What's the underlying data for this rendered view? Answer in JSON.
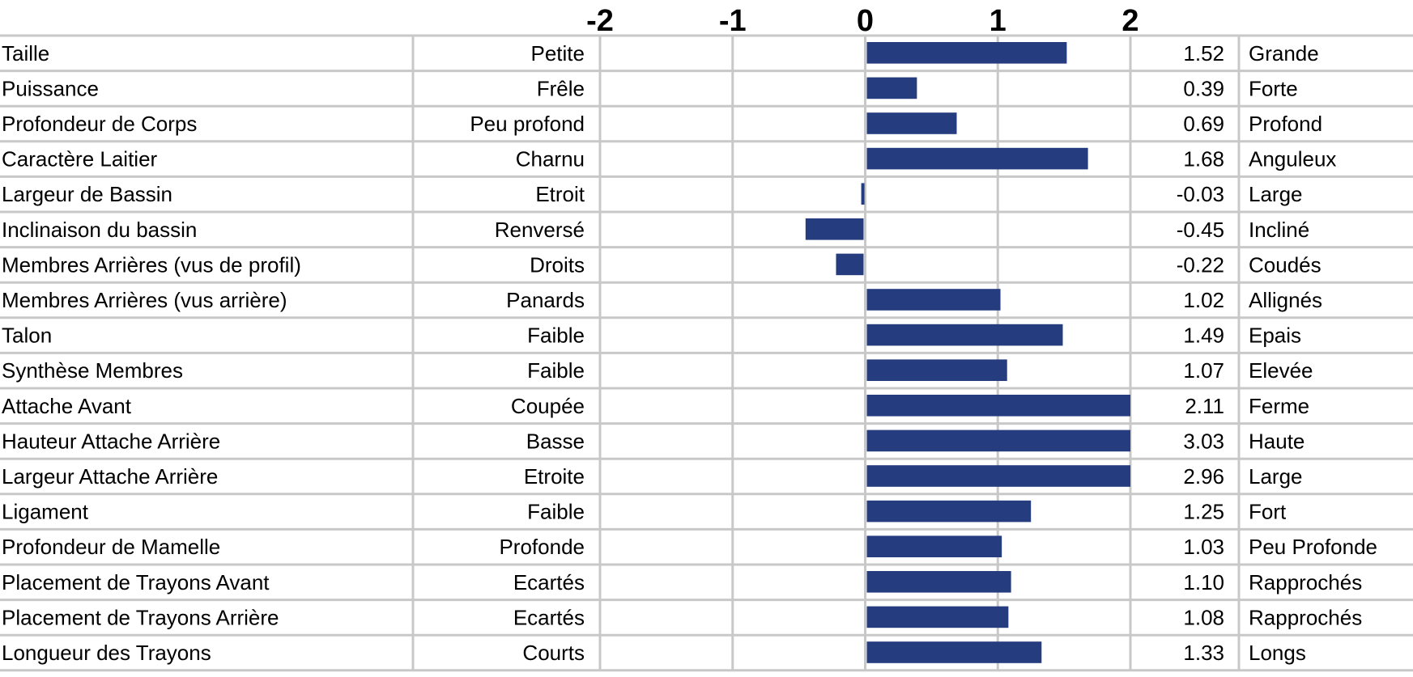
{
  "chart_data": {
    "type": "bar",
    "orientation": "horizontal",
    "title": "",
    "xlabel": "",
    "ylabel": "",
    "xlim": [
      -2,
      2
    ],
    "x_ticks": [
      "-2",
      "-1",
      "0",
      "1",
      "2"
    ],
    "grid": true,
    "bar_color": "#253d7f",
    "grid_color": "#c8c8c8",
    "rows": [
      {
        "trait": "Taille",
        "low": "Petite",
        "value": 1.52,
        "value_label": "1.52",
        "high": "Grande"
      },
      {
        "trait": "Puissance",
        "low": "Frêle",
        "value": 0.39,
        "value_label": "0.39",
        "high": "Forte"
      },
      {
        "trait": "Profondeur de Corps",
        "low": "Peu profond",
        "value": 0.69,
        "value_label": "0.69",
        "high": "Profond"
      },
      {
        "trait": "Caractère Laitier",
        "low": "Charnu",
        "value": 1.68,
        "value_label": "1.68",
        "high": "Anguleux"
      },
      {
        "trait": "Largeur de Bassin",
        "low": "Etroit",
        "value": -0.03,
        "value_label": "-0.03",
        "high": "Large"
      },
      {
        "trait": "Inclinaison du bassin",
        "low": "Renversé",
        "value": -0.45,
        "value_label": "-0.45",
        "high": "Incliné"
      },
      {
        "trait": "Membres Arrières (vus de profil)",
        "low": "Droits",
        "value": -0.22,
        "value_label": "-0.22",
        "high": "Coudés"
      },
      {
        "trait": "Membres Arrières (vus arrière)",
        "low": "Panards",
        "value": 1.02,
        "value_label": "1.02",
        "high": "Allignés"
      },
      {
        "trait": "Talon",
        "low": "Faible",
        "value": 1.49,
        "value_label": "1.49",
        "high": "Epais"
      },
      {
        "trait": "Synthèse Membres",
        "low": "Faible",
        "value": 1.07,
        "value_label": "1.07",
        "high": "Elevée"
      },
      {
        "trait": "Attache Avant",
        "low": "Coupée",
        "value": 2.11,
        "value_label": "2.11",
        "high": "Ferme"
      },
      {
        "trait": "Hauteur Attache Arrière",
        "low": "Basse",
        "value": 3.03,
        "value_label": "3.03",
        "high": "Haute"
      },
      {
        "trait": "Largeur Attache Arrière",
        "low": "Etroite",
        "value": 2.96,
        "value_label": "2.96",
        "high": "Large"
      },
      {
        "trait": "Ligament",
        "low": "Faible",
        "value": 1.25,
        "value_label": "1.25",
        "high": "Fort"
      },
      {
        "trait": "Profondeur de Mamelle",
        "low": "Profonde",
        "value": 1.03,
        "value_label": "1.03",
        "high": "Peu Profonde"
      },
      {
        "trait": "Placement de Trayons Avant",
        "low": "Ecartés",
        "value": 1.1,
        "value_label": "1.10",
        "high": "Rapprochés"
      },
      {
        "trait": "Placement de Trayons Arrière",
        "low": "Ecartés",
        "value": 1.08,
        "value_label": "1.08",
        "high": "Rapprochés"
      },
      {
        "trait": "Longueur des Trayons",
        "low": "Courts",
        "value": 1.33,
        "value_label": "1.33",
        "high": "Longs"
      }
    ]
  }
}
